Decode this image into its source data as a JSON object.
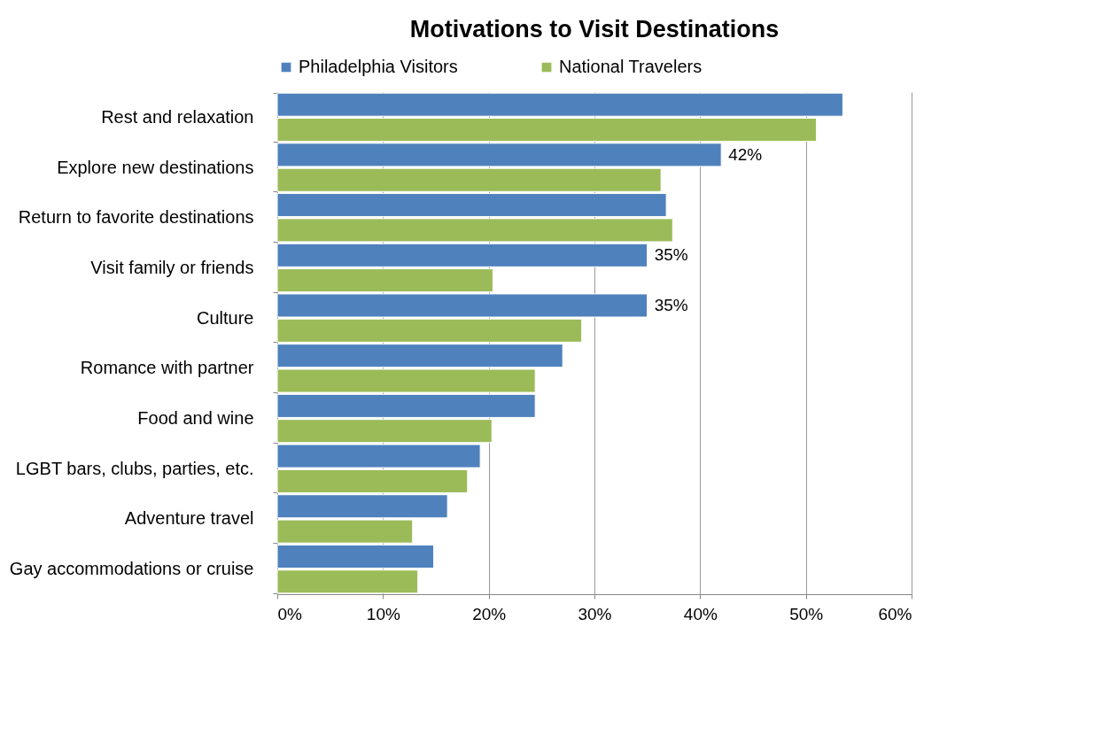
{
  "chart_data": {
    "type": "bar",
    "orientation": "horizontal",
    "title": "Motivations to Visit Destinations",
    "categories": [
      "Rest and relaxation",
      "Explore new destinations",
      "Return to favorite destinations",
      "Visit family or friends",
      "Culture",
      "Romance with partner",
      "Food and wine",
      "LGBT bars, clubs, parties, etc.",
      "Adventure travel",
      "Gay accommodations or cruise"
    ],
    "series": [
      {
        "name": "Philadelphia Visitors",
        "color": "#4f81bd",
        "values": [
          53.5,
          42,
          36.8,
          35,
          35,
          27.0,
          24.4,
          19.2,
          16.1,
          14.8
        ],
        "value_labels": [
          null,
          "42%",
          null,
          "35%",
          "35%",
          null,
          null,
          null,
          null,
          null
        ]
      },
      {
        "name": "National Travelers",
        "color": "#9bbb59",
        "values": [
          51.0,
          36.3,
          37.4,
          20.4,
          28.8,
          24.4,
          20.3,
          18.0,
          12.8,
          13.3
        ]
      }
    ],
    "xlim": [
      0,
      60
    ],
    "xticks": [
      {
        "value": 0,
        "label": "0%"
      },
      {
        "value": 10,
        "label": "10%"
      },
      {
        "value": 20,
        "label": "20%"
      },
      {
        "value": 30,
        "label": "30%"
      },
      {
        "value": 40,
        "label": "40%"
      },
      {
        "value": 50,
        "label": "50%"
      },
      {
        "value": 60,
        "label": "60%"
      }
    ],
    "grid": "x",
    "legend": "top"
  }
}
